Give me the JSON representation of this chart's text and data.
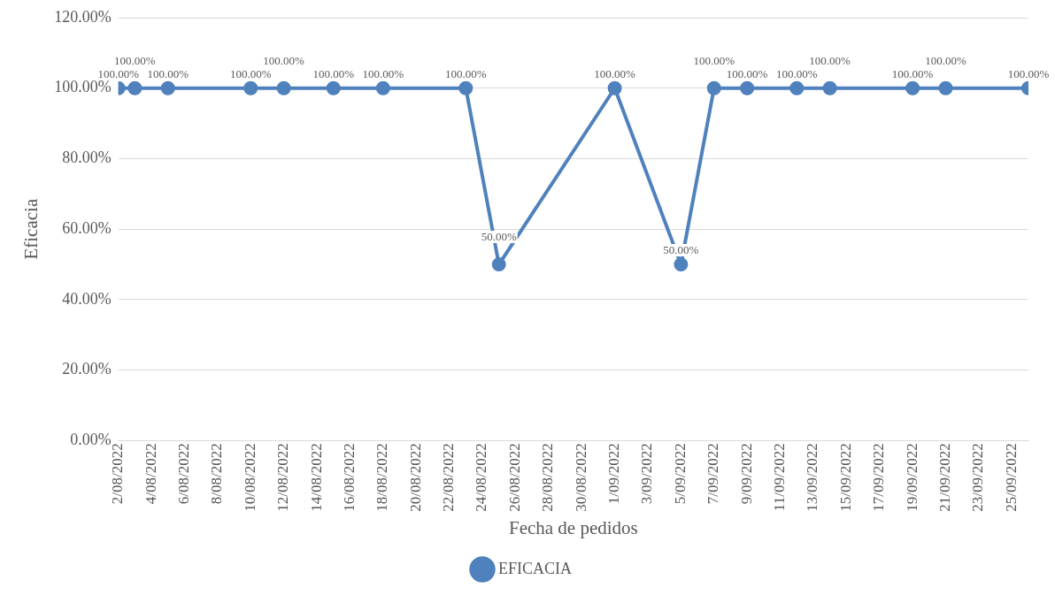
{
  "chart_data": {
    "type": "line",
    "xlabel": "Fecha de pedidos",
    "ylabel": "Eficacia",
    "x": [
      "2022-08-02",
      "2022-08-03",
      "2022-08-05",
      "2022-08-10",
      "2022-08-12",
      "2022-08-15",
      "2022-08-18",
      "2022-08-23",
      "2022-08-25",
      "2022-09-01",
      "2022-09-05",
      "2022-09-07",
      "2022-09-09",
      "2022-09-12",
      "2022-09-14",
      "2022-09-19",
      "2022-09-21",
      "2022-09-26"
    ],
    "series": [
      {
        "name": "EFICACIA",
        "color": "#4f81bd",
        "values": [
          100,
          100,
          100,
          100,
          100,
          100,
          100,
          100,
          50,
          100,
          50,
          100,
          100,
          100,
          100,
          100,
          100,
          100
        ],
        "value_labels": [
          "100.00%",
          "100.00%",
          "100.00%",
          "100.00%",
          "100.00%",
          "100.00%",
          "100.00%",
          "100.00%",
          "50.00%",
          "100.00%",
          "50.00%",
          "100.00%",
          "100.00%",
          "100.00%",
          "100.00%",
          "100.00%",
          "100.00%",
          "100.00%"
        ]
      }
    ],
    "xlim": [
      "2022-08-02",
      "2022-09-26"
    ],
    "xticks": [
      {
        "value": "2022-08-02",
        "label": "2/08/2022"
      },
      {
        "value": "2022-08-04",
        "label": "4/08/2022"
      },
      {
        "value": "2022-08-06",
        "label": "6/08/2022"
      },
      {
        "value": "2022-08-08",
        "label": "8/08/2022"
      },
      {
        "value": "2022-08-10",
        "label": "10/08/2022"
      },
      {
        "value": "2022-08-12",
        "label": "12/08/2022"
      },
      {
        "value": "2022-08-14",
        "label": "14/08/2022"
      },
      {
        "value": "2022-08-16",
        "label": "16/08/2022"
      },
      {
        "value": "2022-08-18",
        "label": "18/08/2022"
      },
      {
        "value": "2022-08-20",
        "label": "20/08/2022"
      },
      {
        "value": "2022-08-22",
        "label": "22/08/2022"
      },
      {
        "value": "2022-08-24",
        "label": "24/08/2022"
      },
      {
        "value": "2022-08-26",
        "label": "26/08/2022"
      },
      {
        "value": "2022-08-28",
        "label": "28/08/2022"
      },
      {
        "value": "2022-08-30",
        "label": "30/08/2022"
      },
      {
        "value": "2022-09-01",
        "label": "1/09/2022"
      },
      {
        "value": "2022-09-03",
        "label": "3/09/2022"
      },
      {
        "value": "2022-09-05",
        "label": "5/09/2022"
      },
      {
        "value": "2022-09-07",
        "label": "7/09/2022"
      },
      {
        "value": "2022-09-09",
        "label": "9/09/2022"
      },
      {
        "value": "2022-09-11",
        "label": "11/09/2022"
      },
      {
        "value": "2022-09-13",
        "label": "13/09/2022"
      },
      {
        "value": "2022-09-15",
        "label": "15/09/2022"
      },
      {
        "value": "2022-09-17",
        "label": "17/09/2022"
      },
      {
        "value": "2022-09-19",
        "label": "19/09/2022"
      },
      {
        "value": "2022-09-21",
        "label": "21/09/2022"
      },
      {
        "value": "2022-09-23",
        "label": "23/09/2022"
      },
      {
        "value": "2022-09-25",
        "label": "25/09/2022"
      }
    ],
    "ylim": [
      0,
      120
    ],
    "yticks": [
      {
        "value": 0,
        "label": "0.00%"
      },
      {
        "value": 20,
        "label": "20.00%"
      },
      {
        "value": 40,
        "label": "40.00%"
      },
      {
        "value": 60,
        "label": "60.00%"
      },
      {
        "value": 80,
        "label": "80.00%"
      },
      {
        "value": 100,
        "label": "100.00%"
      },
      {
        "value": 120,
        "label": "120.00%"
      }
    ],
    "grid": "y",
    "legend": "bottom",
    "marker": "circle",
    "line_style": "solid"
  }
}
